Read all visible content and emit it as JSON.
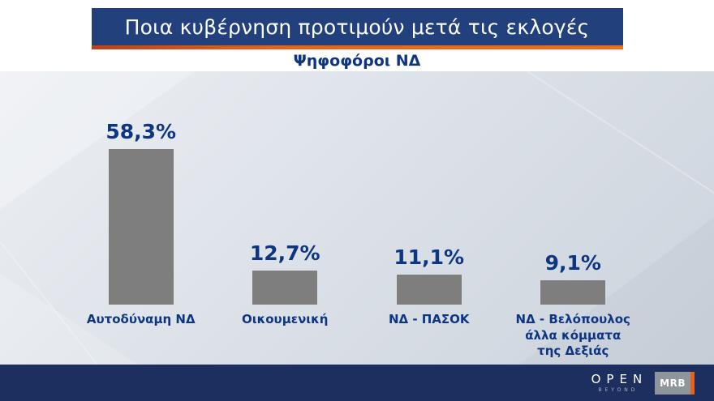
{
  "header": {
    "title": "Ποια κυβέρνηση προτιμούν μετά τις εκλογές",
    "subtitle": "Ψηφοφόροι ΝΔ"
  },
  "chart_data": {
    "type": "bar",
    "title": "Ποια κυβέρνηση προτιμούν μετά τις εκλογές",
    "subtitle": "Ψηφοφόροι ΝΔ",
    "unit": "%",
    "decimal_separator": ",",
    "categories": [
      "Αυτοδύναμη ΝΔ",
      "Οικουμενική",
      "ΝΔ - ΠΑΣΟΚ",
      "ΝΔ - Βελόπουλος\nάλλα κόμματα\nτης Δεξιάς"
    ],
    "values": [
      58.3,
      12.7,
      11.1,
      9.1
    ],
    "value_labels": [
      "58,3%",
      "12,7%",
      "11,1%",
      "9,1%"
    ],
    "ylim": [
      0,
      60
    ],
    "grid": false,
    "legend": false,
    "bar_color": "#7e7e7e",
    "label_color": "#0e3582"
  },
  "footer": {
    "open_logo": "OPEN",
    "open_tagline": "BEYOND",
    "mrb_logo": "MRB"
  },
  "colors": {
    "header_bg": "#21407c",
    "accent_line": "#e8611c",
    "footer_bg": "#1c2f5e",
    "chart_bg": "#dde2e9",
    "bar": "#7e7e7e",
    "text_navy": "#0e3582"
  }
}
